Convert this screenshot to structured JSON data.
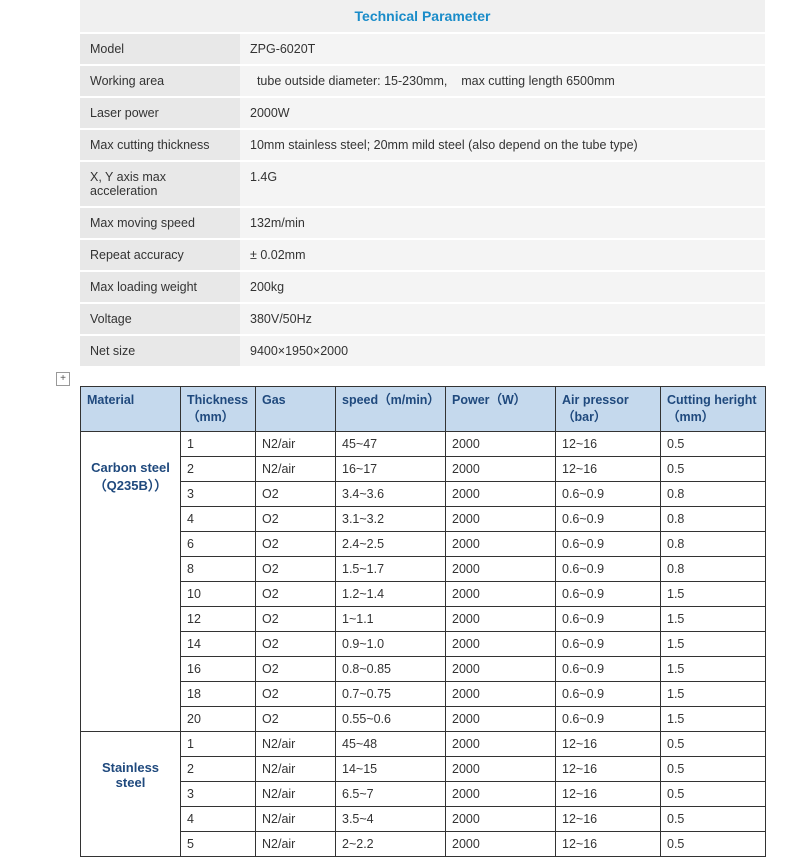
{
  "techParam": {
    "title": "Technical Parameter",
    "rows": [
      {
        "label": "Model",
        "value": "ZPG-6020T"
      },
      {
        "label": "Working area",
        "value": "  tube outside diameter: 15-230mm,    max cutting length 6500mm"
      },
      {
        "label": "Laser power",
        "value": "2000W"
      },
      {
        "label": "Max cutting thickness",
        "value": "10mm stainless steel; 20mm mild steel (also depend on the tube type)"
      },
      {
        "label": "X, Y axis max acceleration",
        "value": "1.4G"
      },
      {
        "label": "Max moving speed",
        "value": "132m/min"
      },
      {
        "label": "Repeat accuracy",
        "value": "± 0.02mm"
      },
      {
        "label": "Max loading weight",
        "value": "200kg"
      },
      {
        "label": "Voltage",
        "value": "380V/50Hz"
      },
      {
        "label": "Net size",
        "value": "9400×1950×2000"
      }
    ]
  },
  "cutTable": {
    "headers": {
      "material": "Material",
      "thickness": "Thickness（mm）",
      "gas": "Gas",
      "speed": "speed（m/min）",
      "power": "Power（W）",
      "air": "Air pressor（bar）",
      "height": "Cutting heright（mm）"
    },
    "groups": [
      {
        "material": "Carbon steel（Q235B））",
        "rows": [
          {
            "th": "1",
            "gas": "N2/air",
            "spd": "45~47",
            "pwr": "2000",
            "air": "12~16",
            "ht": "0.5"
          },
          {
            "th": "2",
            "gas": "N2/air",
            "spd": "16~17",
            "pwr": "2000",
            "air": "12~16",
            "ht": "0.5"
          },
          {
            "th": "3",
            "gas": "O2",
            "spd": "3.4~3.6",
            "pwr": "2000",
            "air": "0.6~0.9",
            "ht": "0.8"
          },
          {
            "th": "4",
            "gas": "O2",
            "spd": "3.1~3.2",
            "pwr": "2000",
            "air": "0.6~0.9",
            "ht": "0.8"
          },
          {
            "th": "6",
            "gas": "O2",
            "spd": "2.4~2.5",
            "pwr": "2000",
            "air": "0.6~0.9",
            "ht": "0.8"
          },
          {
            "th": "8",
            "gas": "O2",
            "spd": "1.5~1.7",
            "pwr": "2000",
            "air": "0.6~0.9",
            "ht": "0.8"
          },
          {
            "th": "10",
            "gas": "O2",
            "spd": "1.2~1.4",
            "pwr": "2000",
            "air": "0.6~0.9",
            "ht": "1.5"
          },
          {
            "th": "12",
            "gas": "O2",
            "spd": "1~1.1",
            "pwr": "2000",
            "air": "0.6~0.9",
            "ht": "1.5"
          },
          {
            "th": "14",
            "gas": "O2",
            "spd": "0.9~1.0",
            "pwr": "2000",
            "air": "0.6~0.9",
            "ht": "1.5"
          },
          {
            "th": "16",
            "gas": "O2",
            "spd": "0.8~0.85",
            "pwr": "2000",
            "air": "0.6~0.9",
            "ht": "1.5"
          },
          {
            "th": "18",
            "gas": "O2",
            "spd": "0.7~0.75",
            "pwr": "2000",
            "air": "0.6~0.9",
            "ht": "1.5"
          },
          {
            "th": "20",
            "gas": "O2",
            "spd": "0.55~0.6",
            "pwr": "2000",
            "air": "0.6~0.9",
            "ht": "1.5"
          }
        ]
      },
      {
        "material": "Stainless steel",
        "rows": [
          {
            "th": "1",
            "gas": "N2/air",
            "spd": "45~48",
            "pwr": "2000",
            "air": "12~16",
            "ht": "0.5"
          },
          {
            "th": "2",
            "gas": "N2/air",
            "spd": "14~15",
            "pwr": "2000",
            "air": "12~16",
            "ht": "0.5"
          },
          {
            "th": "3",
            "gas": "N2/air",
            "spd": "6.5~7",
            "pwr": "2000",
            "air": "12~16",
            "ht": "0.5"
          },
          {
            "th": "4",
            "gas": "N2/air",
            "spd": "3.5~4",
            "pwr": "2000",
            "air": "12~16",
            "ht": "0.5"
          },
          {
            "th": "5",
            "gas": "N2/air",
            "spd": "2~2.2",
            "pwr": "2000",
            "air": "12~16",
            "ht": "0.5"
          }
        ]
      }
    ]
  }
}
